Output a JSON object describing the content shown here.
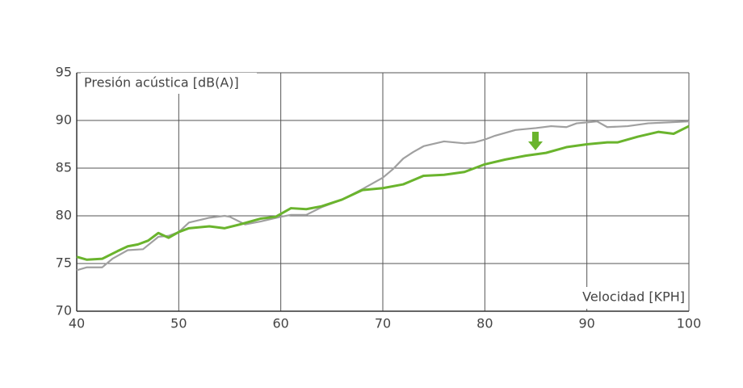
{
  "chart_data": {
    "type": "line",
    "y_label": "Presión acústica [dB(A)]",
    "x_label": "Velocidad [KPH]",
    "xlim": [
      40,
      100
    ],
    "xticks": [
      40,
      50,
      60,
      70,
      80,
      90,
      100
    ],
    "ylim": [
      70,
      95
    ],
    "yticks": [
      70,
      75,
      80,
      85,
      90,
      95
    ],
    "grid": true,
    "series": [
      {
        "color": "#a0a0a0",
        "x": [
          40,
          41,
          42.5,
          43.5,
          45,
          46.5,
          48,
          49,
          50,
          51,
          53,
          54.5,
          55,
          56.5,
          58,
          60,
          61,
          62.5,
          64,
          66,
          68,
          70,
          71,
          72,
          73,
          74,
          76,
          78,
          79,
          80,
          81,
          83,
          85,
          86.5,
          88,
          89,
          90,
          91,
          92,
          94,
          96,
          98,
          100
        ],
        "values": [
          74.3,
          74.6,
          74.6,
          75.5,
          76.4,
          76.5,
          77.8,
          77.9,
          78.3,
          79.3,
          79.8,
          80.0,
          79.9,
          79.1,
          79.4,
          79.9,
          80.1,
          80.1,
          80.9,
          81.7,
          82.8,
          84.0,
          84.9,
          86.0,
          86.7,
          87.3,
          87.8,
          87.6,
          87.7,
          88.0,
          88.4,
          89.0,
          89.2,
          89.4,
          89.3,
          89.7,
          89.8,
          89.9,
          89.3,
          89.4,
          89.7,
          89.8,
          89.9
        ]
      },
      {
        "color": "#6ab42d",
        "x": [
          40,
          41,
          42.5,
          44,
          45,
          46,
          47,
          48,
          49,
          50,
          51,
          53,
          54.5,
          56,
          58,
          59.5,
          61,
          62.5,
          64,
          66,
          67,
          68,
          70,
          72,
          74,
          76,
          78,
          80,
          82,
          84,
          86,
          88,
          90,
          92,
          93,
          95,
          97,
          98.5,
          100
        ],
        "values": [
          75.7,
          75.4,
          75.5,
          76.3,
          76.8,
          77.0,
          77.4,
          78.2,
          77.7,
          78.3,
          78.7,
          78.9,
          78.7,
          79.1,
          79.7,
          79.9,
          80.8,
          80.7,
          81.0,
          81.7,
          82.2,
          82.7,
          82.9,
          83.3,
          84.2,
          84.3,
          84.6,
          85.4,
          85.9,
          86.3,
          86.6,
          87.2,
          87.5,
          87.7,
          87.7,
          88.3,
          88.8,
          88.6,
          89.4
        ]
      }
    ]
  }
}
